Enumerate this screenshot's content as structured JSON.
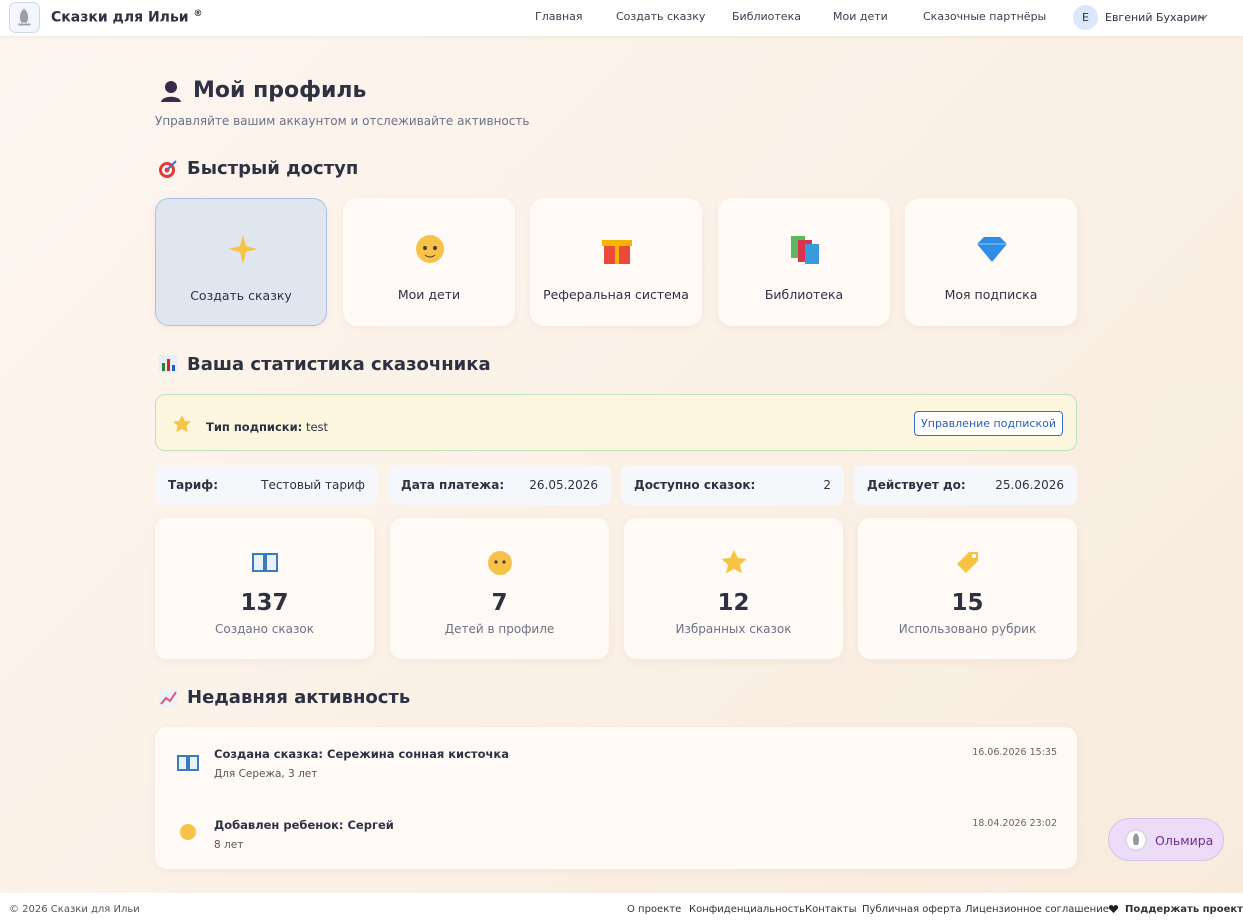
{
  "header": {
    "brand": "Сказки для Ильи",
    "brand_mark": "®",
    "nav": [
      "Главная",
      "Создать сказку",
      "Библиотека",
      "Мои дети",
      "Сказочные партнёры"
    ],
    "user_initial": "Е",
    "user_name": "Евгений Бухарин"
  },
  "profile": {
    "title": "Мой профиль",
    "subtitle": "Управляйте вашим аккаунтом и отслеживайте активность"
  },
  "quick_access": {
    "title": "Быстрый доступ",
    "items": [
      "Создать сказку",
      "Мои дети",
      "Реферальная система",
      "Библиотека",
      "Моя подписка"
    ]
  },
  "stats": {
    "title": "Ваша статистика сказочника",
    "subscription": {
      "label": "Тип подписки:",
      "value": "test",
      "button": "Управление подпиской"
    },
    "details": [
      {
        "label": "Тариф:",
        "value": "Тестовый тариф"
      },
      {
        "label": "Дата платежа:",
        "value": "26.05.2026"
      },
      {
        "label": "Доступно сказок:",
        "value": 2
      },
      {
        "label": "Действует до:",
        "value": "25.06.2026"
      }
    ],
    "cards": [
      {
        "value": 137,
        "label": "Создано сказок"
      },
      {
        "value": 7,
        "label": "Детей в профиле"
      },
      {
        "value": 12,
        "label": "Избранных сказок"
      },
      {
        "value": 15,
        "label": "Использовано рубрик"
      }
    ]
  },
  "activity": {
    "title": "Недавняя активность",
    "items": [
      {
        "title": "Создана сказка: Сережина сонная кисточка",
        "detail": "Для Сережа, 3 лет",
        "time": "16.06.2026 15:35"
      },
      {
        "title": "Добавлен ребенок: Сергей",
        "detail": "8 лет",
        "time": "18.04.2026 23:02"
      }
    ]
  },
  "chat_button": "Ольмира",
  "footer": {
    "copyright": "© 2026 Сказки для Ильи",
    "links": [
      "О проекте",
      "Конфиденциальность",
      "Контакты",
      "Публичная оферта",
      "Лицензионное соглашение"
    ],
    "support": "Поддержать проект"
  }
}
